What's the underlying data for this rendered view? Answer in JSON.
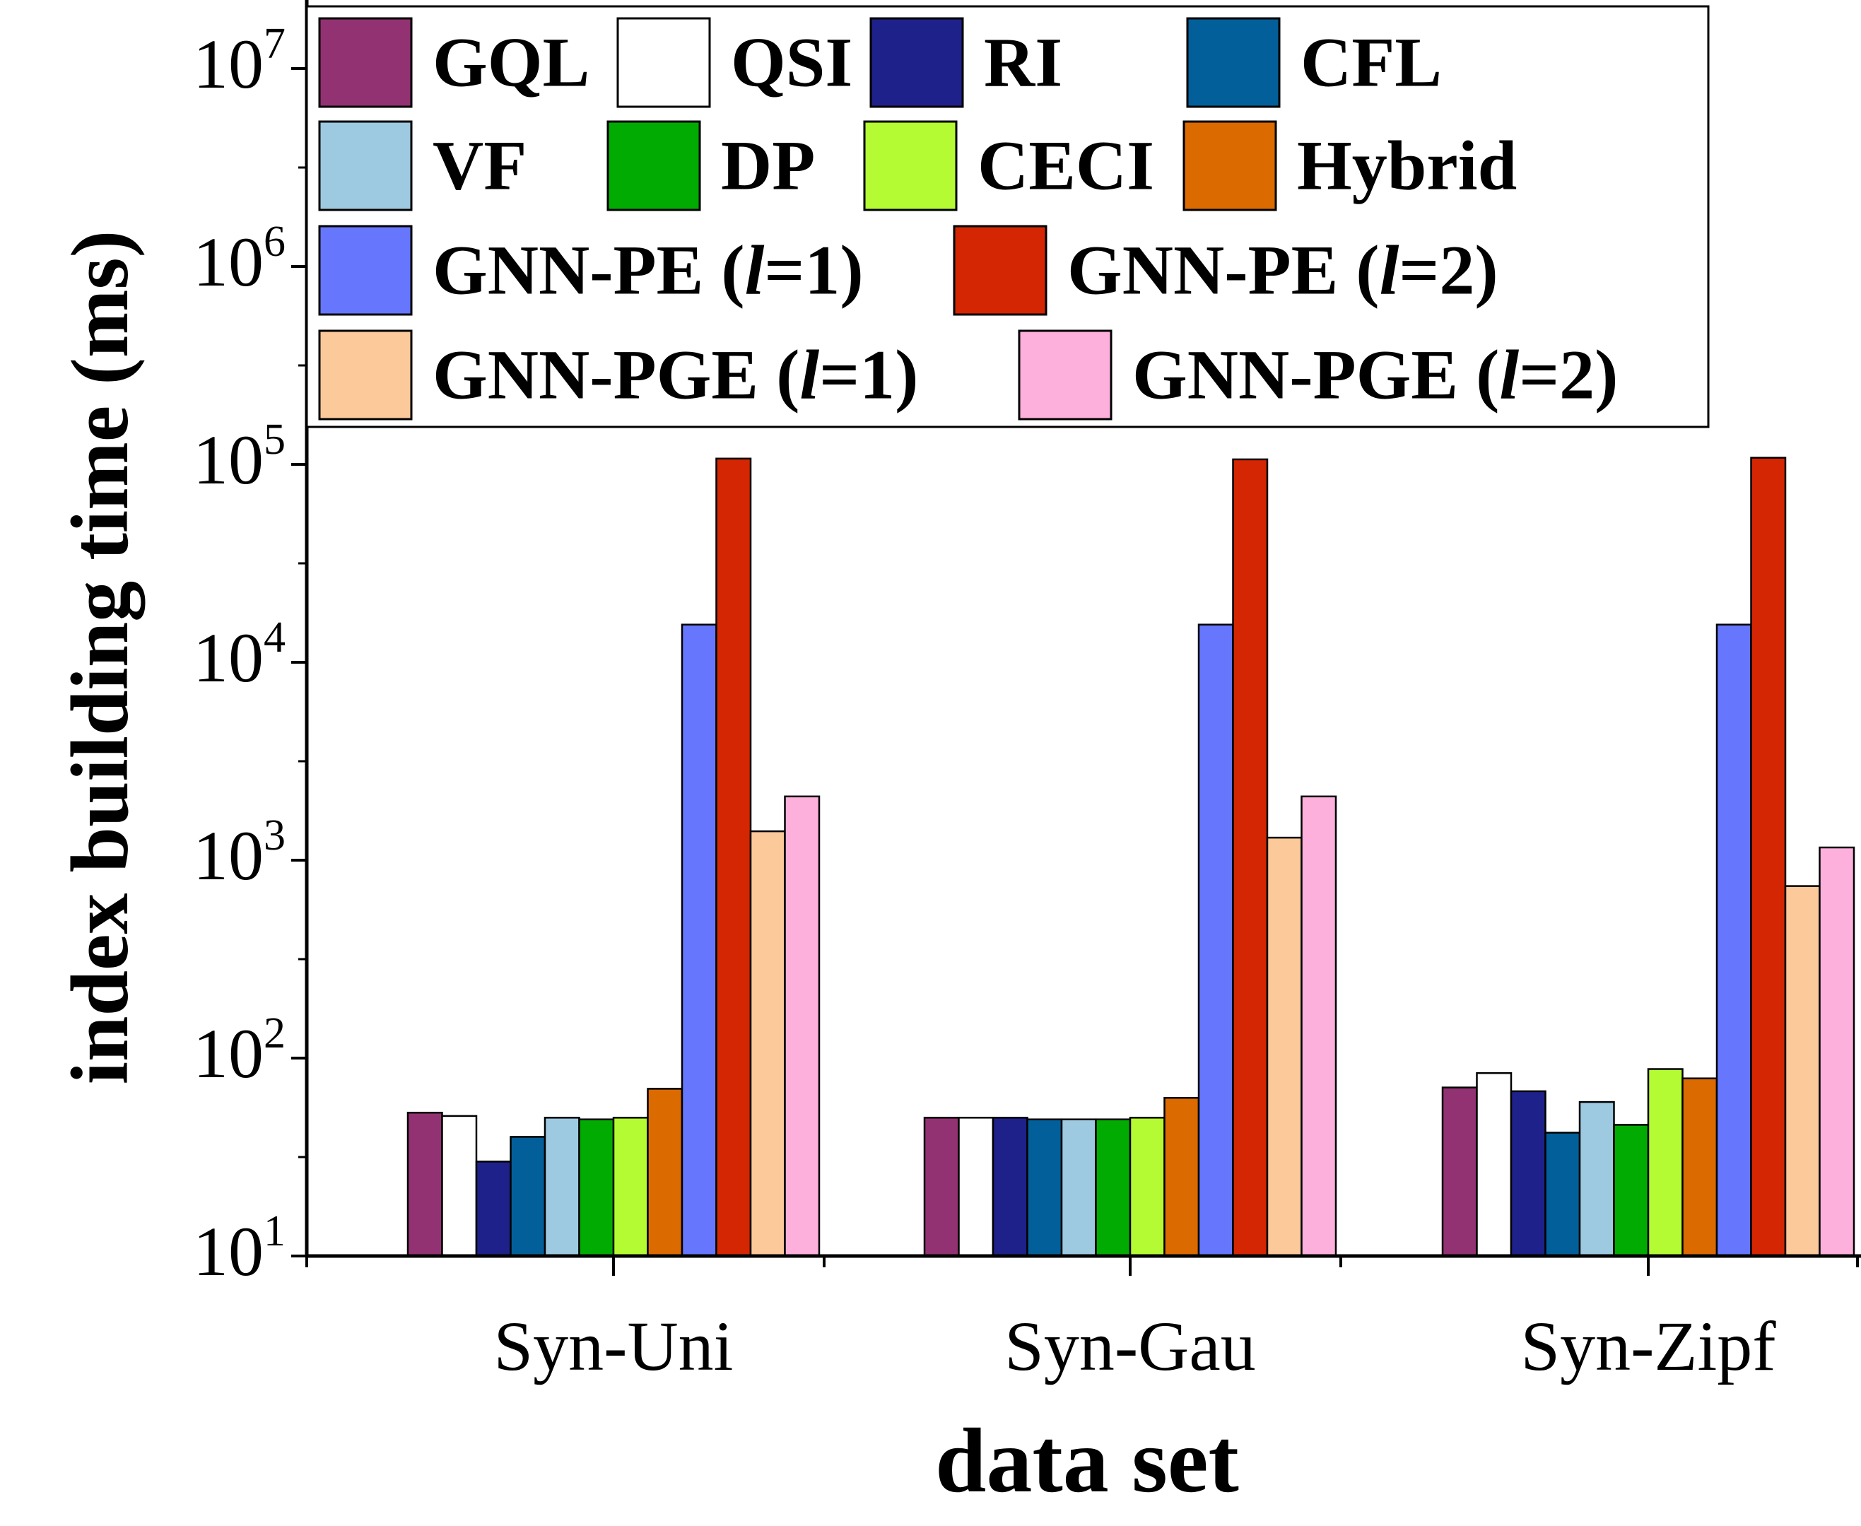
{
  "chart_data": {
    "type": "bar",
    "title": "",
    "xlabel": "data set",
    "ylabel": "index building time (ms)",
    "yscale": "log",
    "ylim": [
      10,
      20000000
    ],
    "yticks": [
      {
        "value": 10,
        "base": "10",
        "exp": "1"
      },
      {
        "value": 100,
        "base": "10",
        "exp": "2"
      },
      {
        "value": 1000,
        "base": "10",
        "exp": "3"
      },
      {
        "value": 10000,
        "base": "10",
        "exp": "4"
      },
      {
        "value": 100000,
        "base": "10",
        "exp": "5"
      },
      {
        "value": 1000000,
        "base": "10",
        "exp": "6"
      },
      {
        "value": 10000000,
        "base": "10",
        "exp": "7"
      }
    ],
    "categories": [
      "Syn-Uni",
      "Syn-Gau",
      "Syn-Zipf"
    ],
    "legend_position": "top",
    "series": [
      {
        "name": "GQL",
        "color": "#933272",
        "values": [
          53,
          50,
          71
        ]
      },
      {
        "name": "QSI",
        "color": "#ffffff",
        "values": [
          51,
          50,
          84
        ]
      },
      {
        "name": "RI",
        "color": "#1f218a",
        "values": [
          30,
          50,
          68
        ]
      },
      {
        "name": "CFL",
        "color": "#035f99",
        "values": [
          40,
          49,
          42
        ]
      },
      {
        "name": "VF",
        "color": "#9ecae1",
        "values": [
          50,
          49,
          60
        ]
      },
      {
        "name": "DP",
        "color": "#02ab02",
        "values": [
          49,
          49,
          46
        ]
      },
      {
        "name": "CECI",
        "color": "#b5fb33",
        "values": [
          50,
          50,
          88
        ]
      },
      {
        "name": "Hybrid",
        "color": "#db6a01",
        "values": [
          70,
          63,
          79
        ]
      },
      {
        "name": "GNN-PE (l=1)",
        "label_prefix": "GNN-PE (",
        "label_italic": "l",
        "label_suffix": "=1)",
        "color": "#6677fe",
        "values": [
          15500,
          15500,
          15500
        ]
      },
      {
        "name": "GNN-PE (l=2)",
        "label_prefix": "GNN-PE (",
        "label_italic": "l",
        "label_suffix": "=2)",
        "color": "#d42602",
        "values": [
          107000,
          106000,
          108000
        ]
      },
      {
        "name": "GNN-PGE (l=1)",
        "label_prefix": "GNN-PGE (",
        "label_italic": "l",
        "label_suffix": "=1)",
        "color": "#fbc99a",
        "values": [
          1400,
          1300,
          740
        ]
      },
      {
        "name": "GNN-PGE (l=2)",
        "label_prefix": "GNN-PGE (",
        "label_italic": "l",
        "label_suffix": "=2)",
        "color": "#feb0dd",
        "values": [
          2100,
          2100,
          1160
        ]
      }
    ]
  }
}
